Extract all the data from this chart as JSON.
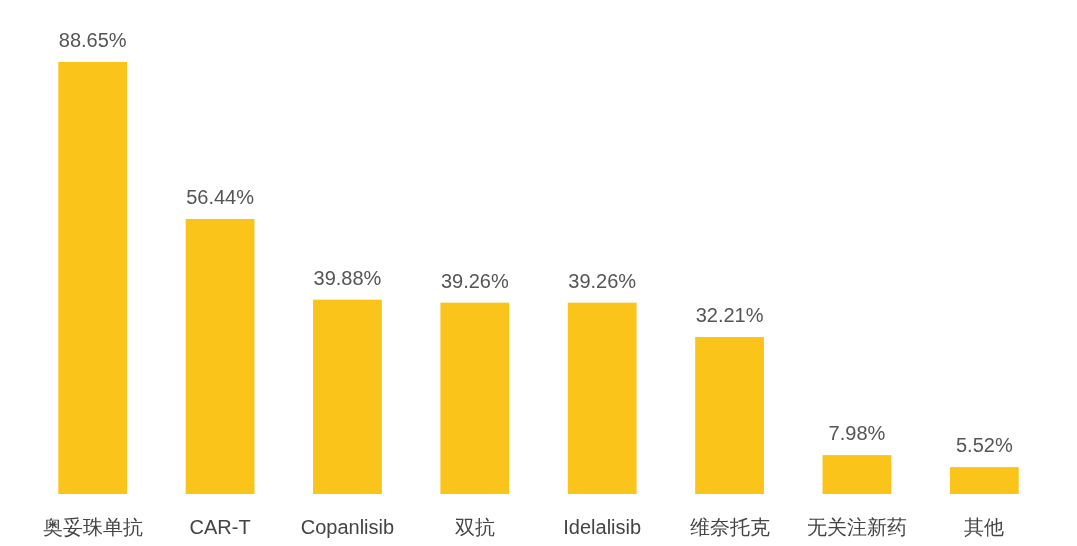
{
  "chart_data": {
    "type": "bar",
    "categories": [
      "奥妥珠单抗",
      "CAR-T",
      "Copanlisib",
      "双抗",
      "Idelalisib",
      "维奈托克",
      "无关注新药",
      "其他"
    ],
    "values": [
      88.65,
      56.44,
      39.88,
      39.26,
      39.26,
      32.21,
      7.98,
      5.52
    ],
    "value_labels": [
      "88.65%",
      "56.44%",
      "39.88%",
      "39.26%",
      "39.26%",
      "32.21%",
      "7.98%",
      "5.52%"
    ],
    "color": "#fbc41a"
  }
}
